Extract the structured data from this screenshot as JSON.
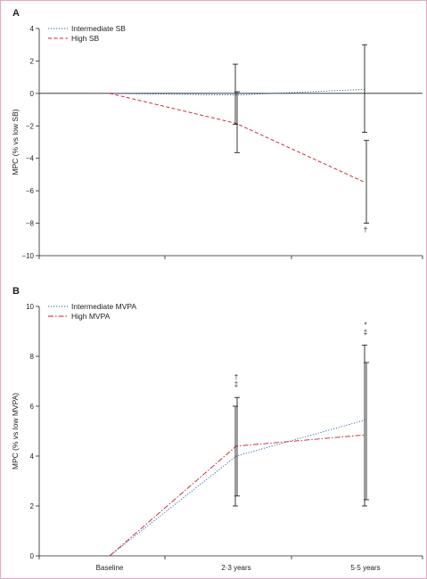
{
  "chart_data": [
    {
      "panel_label": "A",
      "type": "line",
      "categories": [
        "Baseline",
        "2·3 years",
        "5·5 years"
      ],
      "ylabel": "MPC (% vs low SB)",
      "ylim": [
        -10,
        4
      ],
      "yticks": [
        4,
        2,
        0,
        -2,
        -4,
        -6,
        -8,
        -10
      ],
      "reference_line": 0,
      "legend_position": "top-left",
      "series": [
        {
          "name": "Intermediate SB",
          "style": "dotted",
          "color": "#1f5fa8",
          "values": [
            0,
            -0.1,
            0.25
          ],
          "errors": [
            null,
            {
              "low": -1.9,
              "high": 1.8
            },
            {
              "low": -2.4,
              "high": 3.0
            }
          ],
          "markers": [
            "",
            "",
            ""
          ]
        },
        {
          "name": "High SB",
          "style": "dashed",
          "color": "#cc1a2e",
          "values": [
            0,
            -1.85,
            -5.5
          ],
          "errors": [
            null,
            {
              "low": -3.65,
              "high": 0.1
            },
            {
              "low": -8.0,
              "high": -2.9
            }
          ],
          "markers": [
            "",
            "",
            "†"
          ]
        }
      ]
    },
    {
      "panel_label": "B",
      "type": "line",
      "categories": [
        "Baseline",
        "2·3 years",
        "5·5 years"
      ],
      "ylabel": "MPC (% vs low MVPA)",
      "ylim": [
        0,
        10
      ],
      "yticks": [
        10,
        8,
        6,
        4,
        2,
        0
      ],
      "legend_position": "top-left",
      "series": [
        {
          "name": "Intermediate MVPA",
          "style": "dotted",
          "color": "#1f5fa8",
          "values": [
            0,
            4.0,
            5.45
          ],
          "errors": [
            null,
            {
              "low": 2.0,
              "high": 6.0
            },
            {
              "low": 2.0,
              "high": 8.45
            }
          ],
          "markers": [
            "",
            "†",
            "*"
          ]
        },
        {
          "name": "High MVPA",
          "style": "dashdot",
          "color": "#cc1a2e",
          "values": [
            0,
            4.4,
            4.85
          ],
          "errors": [
            null,
            {
              "low": 2.4,
              "high": 6.35
            },
            {
              "low": 2.25,
              "high": 7.75
            }
          ],
          "markers": [
            "",
            "‡",
            "‡"
          ]
        }
      ]
    }
  ]
}
